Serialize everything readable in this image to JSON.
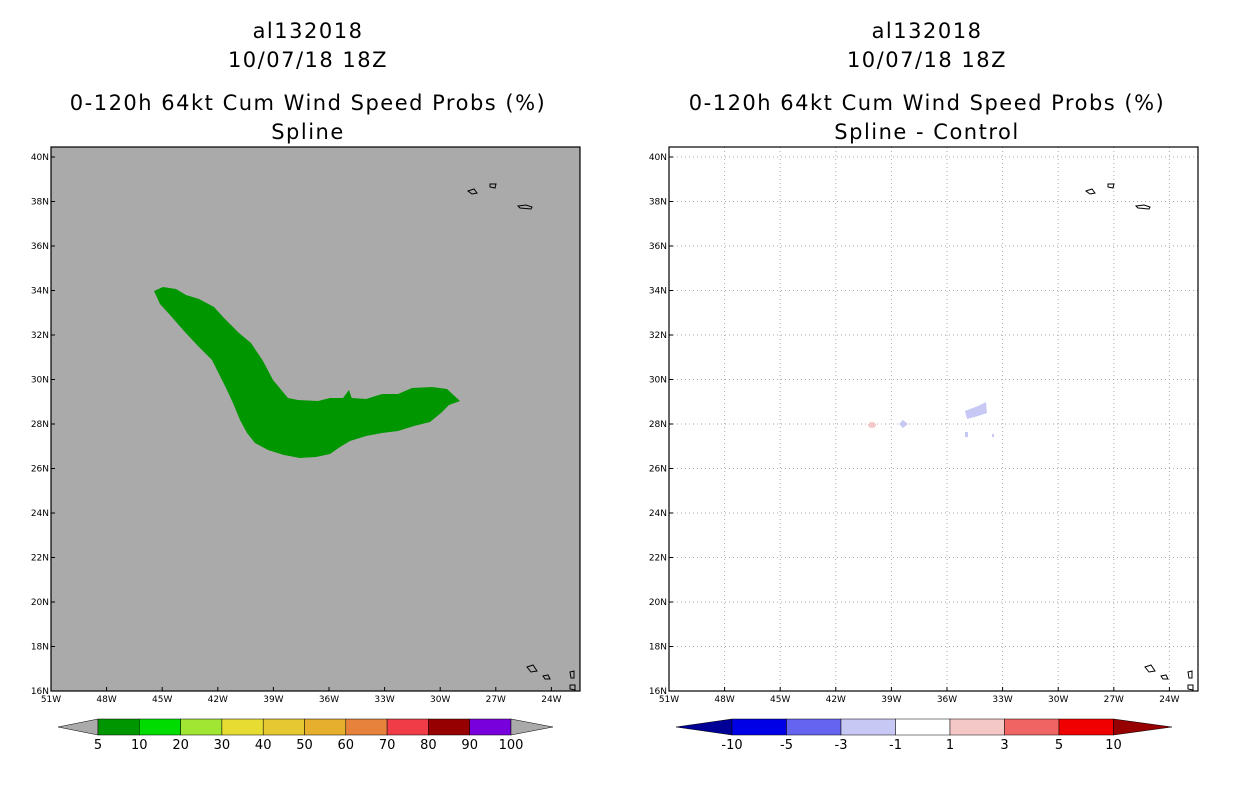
{
  "panels": [
    {
      "id": "left",
      "title_line1": "al132018",
      "title_line2": "10/07/18 18Z",
      "title_line3": "0-120h 64kt Cum Wind Speed Probs (%)",
      "title_line4": "Spline",
      "background_color": "#aaaaaa",
      "show_grid": false,
      "colorbar_labels": [
        "5",
        "10",
        "20",
        "30",
        "40",
        "50",
        "60",
        "70",
        "80",
        "90",
        "100"
      ],
      "colorbar_colors": [
        "#009600",
        "#00dc00",
        "#a0e632",
        "#e6dc32",
        "#e6c832",
        "#e6af2d",
        "#e6823c",
        "#f03c46",
        "#960000",
        "#7800dc"
      ],
      "colorbar_end_color": "#aaaaaa",
      "probability_field": {
        "level": "5-10",
        "color": "#009600"
      }
    },
    {
      "id": "right",
      "title_line1": "al132018",
      "title_line2": "10/07/18 18Z",
      "title_line3": "0-120h 64kt Cum Wind Speed Probs (%)",
      "title_line4": "Spline - Control",
      "background_color": "#ffffff",
      "show_grid": true,
      "colorbar_labels": [
        "-10",
        "-5",
        "-3",
        "-1",
        "1",
        "3",
        "5",
        "10"
      ],
      "colorbar_colors": [
        "#0000e6",
        "#6464f0",
        "#c8c8f5",
        "#ffffff",
        "#f5c8c8",
        "#f06464",
        "#f00000"
      ],
      "colorbar_left_end_color": "#000096",
      "colorbar_right_end_color": "#960000",
      "difference_colors": {
        "negative": "#c8c8f5",
        "positive": "#f5c8c8"
      }
    }
  ],
  "map_axes": {
    "lon_ticks": [
      "51W",
      "48W",
      "45W",
      "42W",
      "39W",
      "36W",
      "33W",
      "30W",
      "27W",
      "24W"
    ],
    "lat_ticks": [
      "16N",
      "18N",
      "20N",
      "22N",
      "24N",
      "26N",
      "28N",
      "30N",
      "32N",
      "34N",
      "36N",
      "38N",
      "40N"
    ]
  }
}
